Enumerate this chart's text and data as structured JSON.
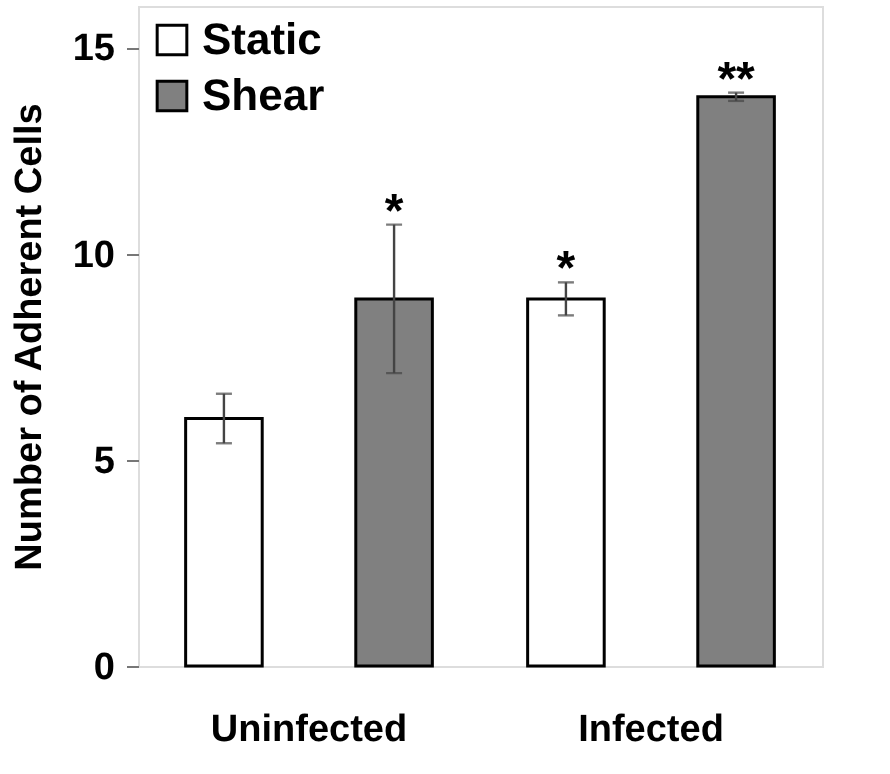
{
  "chart_data": {
    "type": "bar",
    "ylabel": "Number of Adherent Cells",
    "categories": [
      "Uninfected",
      "Infected"
    ],
    "series": [
      {
        "name": "Static",
        "color": "#ffffff",
        "values": [
          6.0,
          8.9
        ],
        "errors": [
          0.6,
          0.4
        ],
        "value_labels": [
          null,
          "*"
        ]
      },
      {
        "name": "Shear",
        "color": "#808080",
        "values": [
          8.9,
          13.8
        ],
        "errors": [
          1.8,
          0.1
        ],
        "value_labels": [
          "*",
          "**"
        ]
      }
    ],
    "ylim": [
      0,
      16
    ],
    "yticks": [
      0,
      5,
      10,
      15
    ],
    "grid": false,
    "legend": "top left"
  }
}
